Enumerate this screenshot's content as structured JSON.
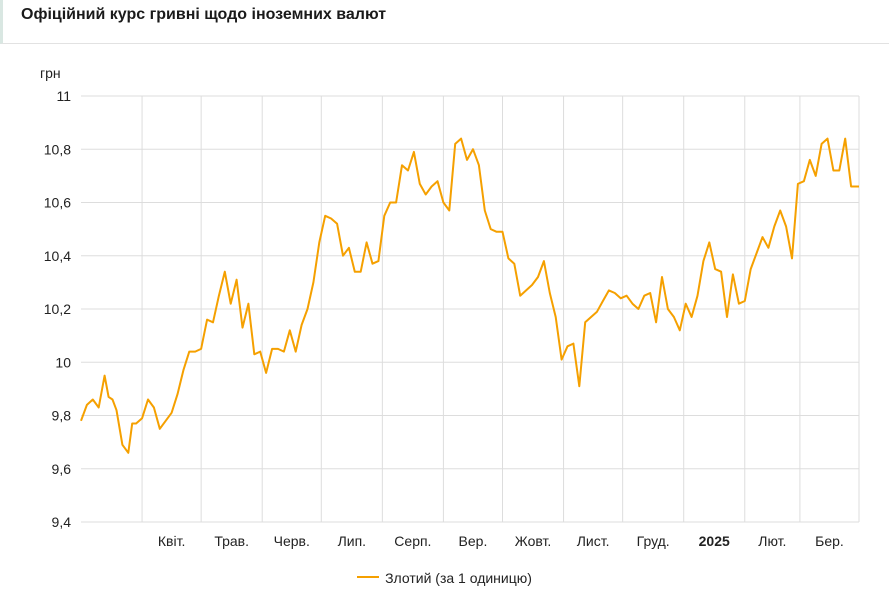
{
  "header": {
    "title": "Офіційний курс гривні щодо іноземних валют"
  },
  "colors": {
    "series": "#f5a000",
    "grid": "#dddddd"
  },
  "chart_data": {
    "type": "line",
    "title": "",
    "ylabel": "грн",
    "xlabel": "",
    "ylim": [
      9.4,
      11
    ],
    "yticks": [
      "9,4",
      "9,6",
      "9,8",
      "10",
      "10,2",
      "10,4",
      "10,6",
      "10,8",
      "11"
    ],
    "ytick_values": [
      9.4,
      9.6,
      9.8,
      10.0,
      10.2,
      10.4,
      10.6,
      10.8,
      11.0
    ],
    "xlim": [
      "2024-03-01",
      "2025-03-31"
    ],
    "x_tick_labels": [
      "Квіт.",
      "Трав.",
      "Черв.",
      "Лип.",
      "Серп.",
      "Вер.",
      "Жовт.",
      "Лист.",
      "Груд.",
      "2025",
      "Лют.",
      "Бер."
    ],
    "x_tick_bold": [
      false,
      false,
      false,
      false,
      false,
      false,
      false,
      false,
      false,
      true,
      false,
      false
    ],
    "x_tick_dates": [
      "2024-04-01",
      "2024-05-01",
      "2024-06-01",
      "2024-07-01",
      "2024-08-01",
      "2024-09-01",
      "2024-10-01",
      "2024-11-01",
      "2024-12-01",
      "2025-01-01",
      "2025-02-01",
      "2025-03-01"
    ],
    "grid": true,
    "legend_position": "bottom",
    "series": [
      {
        "name": "Злотий (за 1 одиницю)",
        "x": [
          "2024-03-01",
          "2024-03-04",
          "2024-03-07",
          "2024-03-10",
          "2024-03-13",
          "2024-03-15",
          "2024-03-17",
          "2024-03-19",
          "2024-03-22",
          "2024-03-25",
          "2024-03-27",
          "2024-03-29",
          "2024-04-01",
          "2024-04-04",
          "2024-04-07",
          "2024-04-10",
          "2024-04-13",
          "2024-04-16",
          "2024-04-19",
          "2024-04-22",
          "2024-04-25",
          "2024-04-28",
          "2024-05-01",
          "2024-05-04",
          "2024-05-07",
          "2024-05-10",
          "2024-05-13",
          "2024-05-16",
          "2024-05-19",
          "2024-05-22",
          "2024-05-25",
          "2024-05-28",
          "2024-05-31",
          "2024-06-03",
          "2024-06-06",
          "2024-06-09",
          "2024-06-12",
          "2024-06-15",
          "2024-06-18",
          "2024-06-21",
          "2024-06-24",
          "2024-06-27",
          "2024-06-30",
          "2024-07-03",
          "2024-07-06",
          "2024-07-09",
          "2024-07-12",
          "2024-07-15",
          "2024-07-18",
          "2024-07-21",
          "2024-07-24",
          "2024-07-27",
          "2024-07-30",
          "2024-08-02",
          "2024-08-05",
          "2024-08-08",
          "2024-08-11",
          "2024-08-14",
          "2024-08-17",
          "2024-08-20",
          "2024-08-23",
          "2024-08-26",
          "2024-08-29",
          "2024-09-01",
          "2024-09-04",
          "2024-09-07",
          "2024-09-10",
          "2024-09-13",
          "2024-09-16",
          "2024-09-19",
          "2024-09-22",
          "2024-09-25",
          "2024-09-28",
          "2024-10-01",
          "2024-10-04",
          "2024-10-07",
          "2024-10-10",
          "2024-10-13",
          "2024-10-16",
          "2024-10-19",
          "2024-10-22",
          "2024-10-25",
          "2024-10-28",
          "2024-10-31",
          "2024-11-03",
          "2024-11-06",
          "2024-11-09",
          "2024-11-12",
          "2024-11-15",
          "2024-11-18",
          "2024-11-21",
          "2024-11-24",
          "2024-11-27",
          "2024-11-30",
          "2024-12-03",
          "2024-12-06",
          "2024-12-09",
          "2024-12-12",
          "2024-12-15",
          "2024-12-18",
          "2024-12-21",
          "2024-12-24",
          "2024-12-27",
          "2024-12-30",
          "2025-01-02",
          "2025-01-05",
          "2025-01-08",
          "2025-01-11",
          "2025-01-14",
          "2025-01-17",
          "2025-01-20",
          "2025-01-23",
          "2025-01-26",
          "2025-01-29",
          "2025-02-01",
          "2025-02-04",
          "2025-02-07",
          "2025-02-10",
          "2025-02-13",
          "2025-02-16",
          "2025-02-19",
          "2025-02-22",
          "2025-02-25",
          "2025-02-28",
          "2025-03-03",
          "2025-03-06",
          "2025-03-09",
          "2025-03-12",
          "2025-03-15",
          "2025-03-18",
          "2025-03-21",
          "2025-03-24",
          "2025-03-27",
          "2025-03-31"
        ],
        "values": [
          9.78,
          9.84,
          9.86,
          9.83,
          9.95,
          9.87,
          9.86,
          9.82,
          9.69,
          9.66,
          9.77,
          9.77,
          9.79,
          9.86,
          9.83,
          9.75,
          9.78,
          9.81,
          9.88,
          9.97,
          10.04,
          10.04,
          10.05,
          10.16,
          10.15,
          10.25,
          10.34,
          10.22,
          10.31,
          10.13,
          10.22,
          10.03,
          10.04,
          9.96,
          10.05,
          10.05,
          10.04,
          10.12,
          10.04,
          10.14,
          10.2,
          10.3,
          10.45,
          10.55,
          10.54,
          10.52,
          10.4,
          10.43,
          10.34,
          10.34,
          10.45,
          10.37,
          10.38,
          10.55,
          10.6,
          10.6,
          10.74,
          10.72,
          10.79,
          10.67,
          10.63,
          10.66,
          10.68,
          10.6,
          10.57,
          10.82,
          10.84,
          10.76,
          10.8,
          10.74,
          10.57,
          10.5,
          10.49,
          10.49,
          10.39,
          10.37,
          10.25,
          10.27,
          10.29,
          10.32,
          10.38,
          10.26,
          10.17,
          10.01,
          10.06,
          10.07,
          9.91,
          10.15,
          10.17,
          10.19,
          10.23,
          10.27,
          10.26,
          10.24,
          10.25,
          10.22,
          10.2,
          10.25,
          10.26,
          10.15,
          10.32,
          10.2,
          10.17,
          10.12,
          10.22,
          10.17,
          10.25,
          10.38,
          10.45,
          10.35,
          10.34,
          10.17,
          10.33,
          10.22,
          10.23,
          10.35,
          10.41,
          10.47,
          10.43,
          10.51,
          10.57,
          10.51,
          10.39,
          10.67,
          10.68,
          10.76,
          10.7,
          10.82,
          10.84,
          10.72,
          10.72,
          10.84,
          10.66,
          10.66
        ]
      }
    ]
  }
}
